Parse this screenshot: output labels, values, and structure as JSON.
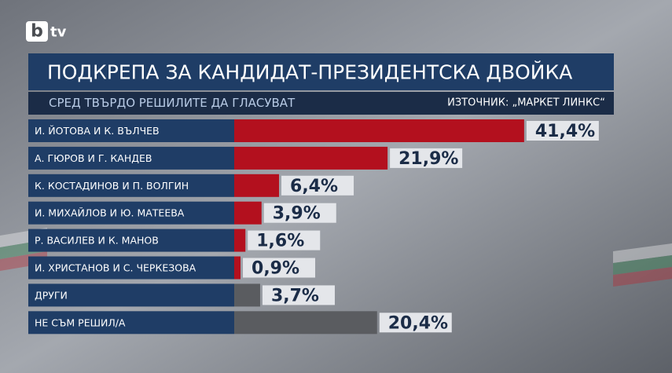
{
  "logo": {
    "mark": "b",
    "text": "tv"
  },
  "chart_data": {
    "type": "bar",
    "orientation": "horizontal",
    "title": "ПОДКРЕПА ЗА КАНДИДАТ-ПРЕЗИДЕНТСКА ДВОЙКА",
    "subtitle": "СРЕД ТВЪРДО РЕШИЛИТЕ ДА ГЛАСУВАТ",
    "source": "ИЗТОЧНИК: „МАРКЕТ ЛИНКС“",
    "categories": [
      "И. ЙОТОВА И К. ВЪЛЧЕВ",
      "А. ГЮРОВ И Г. КАНДЕВ",
      "К. КОСТАДИНОВ И П. ВОЛГИН",
      "И. МИХАЙЛОВ И Ю. МАТЕЕВА",
      "Р. ВАСИЛЕВ И К. МАНОВ",
      "И. ХРИСТАНОВ И С. ЧЕРКЕЗОВА",
      "ДРУГИ",
      "НЕ СЪМ РЕШИЛ/А"
    ],
    "values": [
      41.4,
      21.9,
      6.4,
      3.9,
      1.6,
      0.9,
      3.7,
      20.4
    ],
    "value_labels": [
      "41,4%",
      "21,9%",
      "6,4%",
      "3,9%",
      "1,6%",
      "0,9%",
      "3,7%",
      "20,4%"
    ],
    "colors": [
      "#b3101e",
      "#b3101e",
      "#b3101e",
      "#b3101e",
      "#b3101e",
      "#b3101e",
      "#5a5c60",
      "#5a5c60"
    ]
  }
}
